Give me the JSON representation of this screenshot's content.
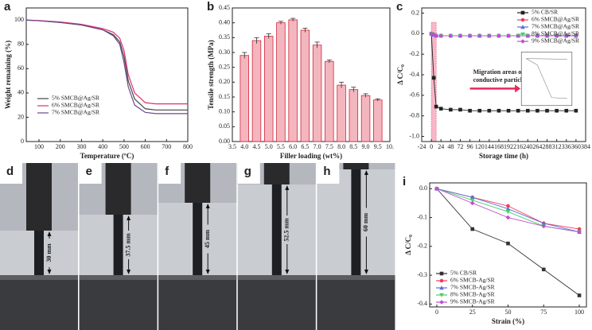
{
  "chart_data": [
    {
      "panel": "a",
      "type": "line",
      "xlabel": "Temperature (ºC)",
      "ylabel": "Weight remaining (%)",
      "xlim": [
        40,
        800
      ],
      "xticks": [
        100,
        200,
        300,
        400,
        500,
        600,
        700,
        800
      ],
      "ylim": [
        0,
        110
      ],
      "yticks": [
        0,
        20,
        40,
        60,
        80,
        100
      ],
      "legend": "lower left",
      "x": [
        40,
        100,
        200,
        300,
        400,
        450,
        480,
        500,
        520,
        550,
        600,
        650,
        700,
        800
      ],
      "series": [
        {
          "name": "5% SMCB@Ag/SR",
          "color": "#444444",
          "values": [
            100,
            99.5,
            98,
            96,
            92,
            88,
            82,
            70,
            50,
            35,
            27,
            26,
            26,
            26
          ]
        },
        {
          "name": "6% SMCB@Ag/SR",
          "color": "#e0306a",
          "values": [
            100,
            99.6,
            98.5,
            96.5,
            93,
            90,
            85,
            75,
            55,
            40,
            32,
            31,
            31,
            31
          ]
        },
        {
          "name": "7% SMCB@Ag/SR",
          "color": "#6b4a8c",
          "values": [
            100,
            99.5,
            98,
            96,
            92,
            87,
            80,
            65,
            45,
            30,
            24,
            23,
            23,
            23
          ]
        }
      ]
    },
    {
      "panel": "b",
      "type": "bar",
      "xlabel": "Filler loading (wt%)",
      "ylabel": "Tensile strength (MPa)",
      "xlim": [
        3.5,
        10
      ],
      "xticks": [
        3.5,
        {
          "value": 4,
          "label": "4.0"
        },
        4.5,
        {
          "value": 5,
          "label": "5.0"
        },
        5.5,
        {
          "value": 6,
          "label": "6.0"
        },
        6.5,
        {
          "value": 7,
          "label": "7.0"
        },
        7.5,
        {
          "value": 8,
          "label": "8.0"
        },
        8.5,
        {
          "value": 9,
          "label": "9.0"
        },
        9.5,
        {
          "value": 10,
          "label": "10."
        }
      ],
      "ylim": [
        0,
        0.45
      ],
      "yticks": [
        {
          "value": 0,
          "label": "0.00"
        },
        0.05,
        {
          "value": 0.1,
          "label": "0.10"
        },
        0.15,
        {
          "value": 0.2,
          "label": "0.20"
        },
        0.25,
        {
          "value": 0.3,
          "label": "0.30"
        },
        0.35,
        {
          "value": 0.4,
          "label": "0.40"
        },
        0.45
      ],
      "color": "#f4b6be",
      "edge": "#d0263c",
      "x": [
        4,
        4.5,
        5,
        5.5,
        6,
        6.5,
        7,
        7.5,
        8,
        8.5,
        9,
        9.5
      ],
      "values": [
        0.29,
        0.34,
        0.355,
        0.4,
        0.41,
        0.375,
        0.325,
        0.27,
        0.19,
        0.175,
        0.155,
        0.14
      ],
      "errors": [
        0.01,
        0.01,
        0.008,
        0.005,
        0.005,
        0.007,
        0.01,
        0.005,
        0.01,
        0.008,
        0.006,
        0.004
      ]
    },
    {
      "panel": "c",
      "type": "line",
      "xlabel": "Storage time (h)",
      "ylabel": "Δ C/C₀",
      "xlim": [
        -24,
        384
      ],
      "xticks": [
        -24,
        0,
        24,
        48,
        72,
        96,
        120,
        144,
        168,
        192,
        216,
        240,
        264,
        288,
        312,
        336,
        360,
        384
      ],
      "ylim": [
        -1.05,
        0.25
      ],
      "yticks": [
        0.2,
        {
          "value": 0,
          "label": "0.0"
        },
        -0.2,
        -0.4,
        -0.6,
        -0.8,
        {
          "value": -1,
          "label": "-1.0"
        }
      ],
      "legend": "upper right",
      "shaded_range": [
        0,
        12
      ],
      "annotation": [
        "Migration areas of",
        "conductive particles"
      ],
      "x": [
        0,
        6,
        12,
        24,
        48,
        72,
        96,
        120,
        144,
        168,
        192,
        216,
        240,
        264,
        288,
        312,
        336,
        360
      ],
      "series": [
        {
          "name": "5% CB/SR",
          "color": "#222222",
          "marker": "square",
          "values": [
            0,
            -0.43,
            -0.71,
            -0.73,
            -0.74,
            -0.74,
            -0.75,
            -0.75,
            -0.75,
            -0.75,
            -0.75,
            -0.75,
            -0.75,
            -0.75,
            -0.75,
            -0.75,
            -0.75,
            -0.75
          ]
        },
        {
          "name": "6% SMCB@Ag/SR",
          "color": "#f03c5a",
          "marker": "circle",
          "values": [
            0,
            -0.01,
            -0.02,
            -0.02,
            -0.02,
            -0.02,
            -0.02,
            -0.02,
            -0.02,
            -0.02,
            -0.02,
            -0.02,
            -0.02,
            -0.02,
            -0.02,
            -0.02,
            -0.02,
            -0.02
          ]
        },
        {
          "name": "7% SMCB@Ag/SR",
          "color": "#5a6fd8",
          "marker": "triangle-up",
          "values": [
            0,
            -0.01,
            -0.02,
            -0.02,
            -0.02,
            -0.02,
            -0.02,
            -0.02,
            -0.02,
            -0.02,
            -0.02,
            -0.02,
            -0.02,
            -0.02,
            -0.02,
            -0.02,
            -0.02,
            -0.02
          ]
        },
        {
          "name": "8% SMCB@Ag/SR",
          "color": "#4ccc6c",
          "marker": "triangle-down",
          "values": [
            0,
            -0.01,
            -0.02,
            -0.02,
            -0.02,
            -0.02,
            -0.02,
            -0.02,
            -0.02,
            -0.02,
            -0.02,
            -0.02,
            -0.02,
            -0.02,
            -0.02,
            -0.02,
            -0.02,
            -0.02
          ]
        },
        {
          "name": "9% SMCB@Ag/SR",
          "color": "#c04ed0",
          "marker": "diamond",
          "values": [
            0,
            -0.01,
            -0.02,
            -0.02,
            -0.02,
            -0.02,
            -0.02,
            -0.02,
            -0.02,
            -0.02,
            -0.02,
            -0.02,
            -0.02,
            -0.02,
            -0.02,
            -0.02,
            -0.02,
            -0.02
          ]
        }
      ]
    },
    {
      "panel": "i",
      "type": "line",
      "xlabel": "Strain (%)",
      "ylabel": "Δ C/C₀",
      "xlim": [
        -5,
        105
      ],
      "xticks": [
        0,
        25,
        50,
        75,
        100
      ],
      "ylim": [
        -0.41,
        0.02
      ],
      "yticks": [
        {
          "value": 0,
          "label": "0.0"
        },
        -0.1,
        -0.2,
        -0.3,
        -0.4
      ],
      "legend": "lower left",
      "x": [
        0,
        25,
        50,
        75,
        100
      ],
      "series": [
        {
          "name": "5% CB/SR",
          "color": "#333333",
          "marker": "square",
          "values": [
            0,
            -0.14,
            -0.19,
            -0.28,
            -0.37
          ]
        },
        {
          "name": "6% SMCB-Ag/SR",
          "color": "#f03c5a",
          "marker": "circle",
          "values": [
            0,
            -0.03,
            -0.06,
            -0.12,
            -0.14
          ]
        },
        {
          "name": "7% SMCB-Ag/SR",
          "color": "#5a6fd8",
          "marker": "triangle-up",
          "values": [
            0,
            -0.03,
            -0.07,
            -0.12,
            -0.15
          ]
        },
        {
          "name": "8% SMCB-Ag/SR",
          "color": "#4ccc6c",
          "marker": "triangle-down",
          "values": [
            0,
            -0.04,
            -0.08,
            -0.13,
            -0.15
          ]
        },
        {
          "name": "9% SMCB-Ag/SR",
          "color": "#c04ed0",
          "marker": "diamond",
          "values": [
            0,
            -0.05,
            -0.1,
            -0.13,
            -0.15
          ]
        }
      ]
    }
  ],
  "photos": [
    {
      "panel": "d",
      "annotation": "30 mm"
    },
    {
      "panel": "e",
      "annotation": "37.5 mm"
    },
    {
      "panel": "f",
      "annotation": "45 mm"
    },
    {
      "panel": "g",
      "annotation": "52.5 mm"
    },
    {
      "panel": "h",
      "annotation": "60 mm"
    }
  ]
}
